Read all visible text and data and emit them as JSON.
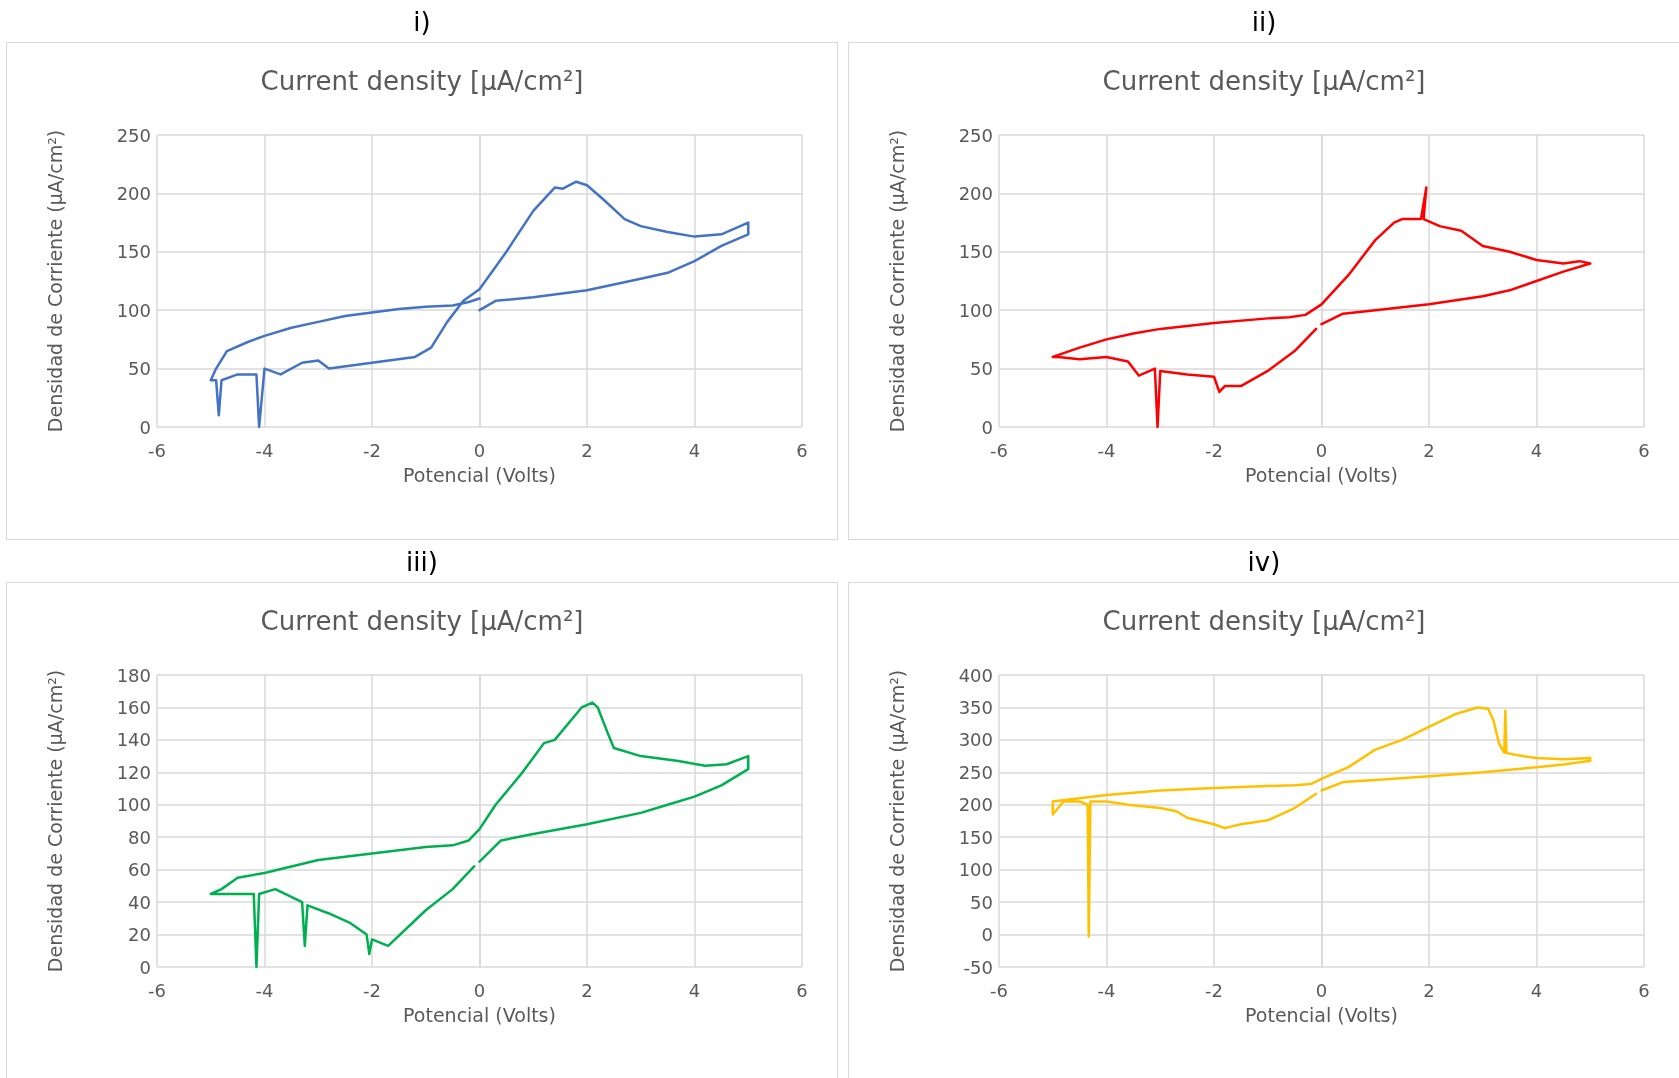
{
  "chart_data": [
    {
      "type": "line",
      "title": "Current density [µA/cm²]",
      "xlabel": "Potencial (Volts)",
      "ylabel": "Densidad de Corriente (µA/cm²)",
      "annotations": [
        "i)"
      ],
      "color": "#4472c4",
      "grid": true,
      "xlim": [
        -6,
        6
      ],
      "xticks": [
        -6,
        -4,
        -2,
        0,
        2,
        4,
        6
      ],
      "ylim": [
        0,
        250
      ],
      "yticks": [
        0,
        50,
        100,
        150,
        200,
        250
      ],
      "x": [
        0,
        0.3,
        1,
        2,
        2.5,
        3,
        3.5,
        4,
        4.5,
        5,
        5,
        4.5,
        4,
        3.5,
        3,
        2.7,
        2.3,
        2,
        1.8,
        1.55,
        1.4,
        1,
        0.5,
        0,
        -0.3,
        -0.6,
        -0.9,
        -1.2,
        -2,
        -2.8,
        -3,
        -3.3,
        -3.7,
        -4,
        -4.1,
        -4.15,
        -4.5,
        -4.8,
        -4.85,
        -4.9,
        -5,
        -4.9,
        -4.7,
        -4.3,
        -4,
        -3.5,
        -3,
        -2.5,
        -2,
        -1.5,
        -1,
        -0.5,
        -0.2,
        0
      ],
      "values": [
        100,
        108,
        111,
        117,
        122,
        127,
        132,
        142,
        155,
        165,
        175,
        165,
        163,
        167,
        172,
        178,
        195,
        207,
        210,
        204,
        205,
        185,
        150,
        118,
        108,
        90,
        68,
        60,
        55,
        50,
        57,
        55,
        45,
        50,
        0,
        45,
        45,
        40,
        10,
        40,
        40,
        50,
        65,
        73,
        78,
        85,
        90,
        95,
        98,
        101,
        103,
        104,
        107,
        110
      ]
    },
    {
      "type": "line",
      "title": "Current density [µA/cm²]",
      "xlabel": "Potencial (Volts)",
      "ylabel": "Densidad de Corriente (µA/cm²)",
      "annotations": [
        "ii)"
      ],
      "color": "#ff0000",
      "grid": true,
      "xlim": [
        -6,
        6
      ],
      "xticks": [
        -6,
        -4,
        -2,
        0,
        2,
        4,
        6
      ],
      "ylim": [
        0,
        250
      ],
      "yticks": [
        0,
        50,
        100,
        150,
        200,
        250
      ],
      "x": [
        0,
        0.4,
        1,
        2,
        3,
        3.5,
        4,
        4.5,
        5,
        4.8,
        4.5,
        4,
        3.5,
        3,
        2.6,
        2.2,
        1.9,
        1.95,
        1.85,
        1.5,
        1.35,
        1,
        0.5,
        0,
        -0.3,
        -0.6,
        -1,
        -2,
        -3,
        -3.5,
        -4,
        -4.5,
        -5,
        -4.9,
        -4.5,
        -4,
        -3.6,
        -3.4,
        -3.1,
        -3.05,
        -3,
        -2.5,
        -2,
        -1.9,
        -1.8,
        -1.5,
        -1,
        -0.5,
        -0.1
      ],
      "values": [
        88,
        97,
        100,
        105,
        112,
        117,
        125,
        133,
        140,
        142,
        140,
        143,
        150,
        155,
        168,
        172,
        178,
        205,
        178,
        178,
        175,
        160,
        130,
        105,
        96,
        94,
        93,
        89,
        84,
        80,
        75,
        68,
        60,
        60,
        58,
        60,
        56,
        44,
        50,
        0,
        48,
        45,
        43,
        30,
        35,
        35,
        48,
        65,
        84
      ]
    },
    {
      "type": "line",
      "title": "Current density [µA/cm²]",
      "xlabel": "Potencial (Volts)",
      "ylabel": "Densidad de Corriente (µA/cm²)",
      "annotations": [
        "iii)"
      ],
      "color": "#00b050",
      "grid": true,
      "xlim": [
        -6,
        6
      ],
      "xticks": [
        -6,
        -4,
        -2,
        0,
        2,
        4,
        6
      ],
      "ylim": [
        0,
        180
      ],
      "yticks": [
        0,
        20,
        40,
        60,
        80,
        100,
        120,
        140,
        160,
        180
      ],
      "x": [
        0,
        0.4,
        1,
        2,
        3,
        3.5,
        4,
        4.5,
        5,
        5,
        4.6,
        4.2,
        3.7,
        3,
        2.5,
        2.4,
        2.2,
        2.1,
        1.9,
        1.4,
        1.2,
        0.8,
        0.3,
        0,
        -0.2,
        -0.5,
        -1,
        -2,
        -3,
        -3.5,
        -4,
        -4.5,
        -4.8,
        -5,
        -4.6,
        -4.2,
        -4.15,
        -4.1,
        -3.8,
        -3.3,
        -3.25,
        -3.2,
        -2.8,
        -2.4,
        -2.1,
        -2.05,
        -2,
        -1.7,
        -1,
        -0.5,
        -0.1
      ],
      "values": [
        65,
        78,
        82,
        88,
        95,
        100,
        105,
        112,
        122,
        130,
        125,
        124,
        127,
        130,
        135,
        143,
        160,
        163,
        160,
        140,
        138,
        120,
        100,
        85,
        78,
        75,
        74,
        70,
        66,
        62,
        58,
        55,
        48,
        45,
        45,
        45,
        0,
        45,
        48,
        40,
        13,
        38,
        33,
        27,
        20,
        8,
        17,
        13,
        35,
        48,
        62
      ]
    },
    {
      "type": "line",
      "title": "Current density [µA/cm²]",
      "xlabel": "Potencial (Volts)",
      "ylabel": "Densidad de Corriente (µA/cm²)",
      "annotations": [
        "iv)"
      ],
      "color": "#ffc000",
      "grid": true,
      "xlim": [
        -6,
        6
      ],
      "xticks": [
        -6,
        -4,
        -2,
        0,
        2,
        4,
        6
      ],
      "ylim": [
        -50,
        400
      ],
      "yticks": [
        -50,
        0,
        50,
        100,
        150,
        200,
        250,
        300,
        350,
        400
      ],
      "x": [
        0,
        0.4,
        1,
        2,
        3,
        4,
        4.5,
        5,
        5,
        4.5,
        4,
        3.6,
        3.44,
        3.42,
        3.4,
        3.3,
        3.2,
        3.1,
        2.9,
        2.5,
        2,
        1.5,
        1,
        0.5,
        0,
        -0.2,
        -0.5,
        -1,
        -2,
        -3,
        -4,
        -5,
        -5,
        -4.8,
        -4.5,
        -4.35,
        -4.33,
        -4.3,
        -4,
        -3.6,
        -3,
        -2.7,
        -2.5,
        -2,
        -1.8,
        -1.5,
        -1,
        -0.5,
        -0.1
      ],
      "values": [
        222,
        235,
        238,
        244,
        250,
        258,
        262,
        268,
        272,
        270,
        272,
        277,
        280,
        345,
        280,
        295,
        330,
        348,
        350,
        340,
        320,
        300,
        285,
        258,
        240,
        232,
        230,
        229,
        226,
        222,
        215,
        205,
        185,
        205,
        205,
        200,
        -3,
        205,
        205,
        200,
        195,
        190,
        180,
        170,
        164,
        170,
        176,
        195,
        217
      ]
    }
  ]
}
